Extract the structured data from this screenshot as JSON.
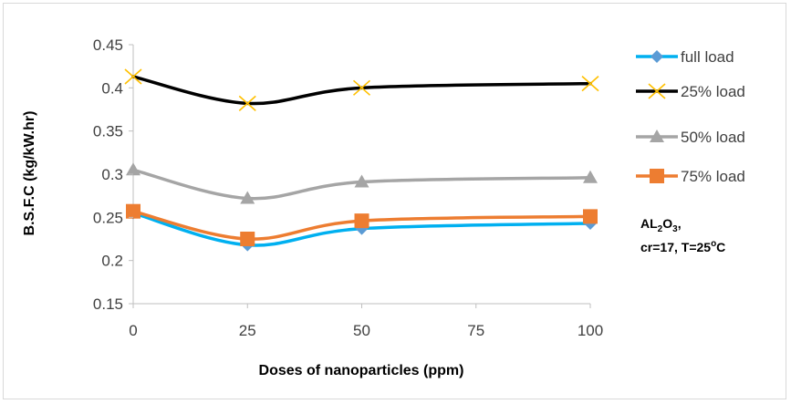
{
  "chart_data": {
    "type": "line",
    "title": "",
    "xlabel": "Doses of nanoparticles (ppm)",
    "ylabel": "B.S.F.C (kg/kW.hr)",
    "x": [
      0,
      25,
      50,
      100
    ],
    "xticks": [
      "0",
      "25",
      "50",
      "75",
      "100"
    ],
    "xlim": [
      0,
      100
    ],
    "yticks": [
      "0.15",
      "0.2",
      "0.25",
      "0.3",
      "0.35",
      "0.4",
      "0.45"
    ],
    "ylim": [
      0.15,
      0.45
    ],
    "grid": false,
    "legend_position": "right",
    "series": [
      {
        "name": "full  load",
        "values": [
          0.255,
          0.218,
          0.237,
          0.243
        ],
        "color": "#00b0f0",
        "marker": "diamond",
        "marker_color": "#5b9bd5"
      },
      {
        "name": "25% load",
        "values": [
          0.413,
          0.382,
          0.4,
          0.405
        ],
        "color": "#000000",
        "marker": "x",
        "marker_color": "#ffc000"
      },
      {
        "name": "50% load",
        "values": [
          0.305,
          0.272,
          0.291,
          0.296
        ],
        "color": "#a5a5a5",
        "marker": "triangle",
        "marker_color": "#a5a5a5"
      },
      {
        "name": "75% load",
        "values": [
          0.257,
          0.225,
          0.246,
          0.251
        ],
        "color": "#ed7d31",
        "marker": "square",
        "marker_color": "#ed7d31"
      }
    ],
    "annotation": {
      "line1_base": "AL",
      "line1_sub1": "2",
      "line1_mid": "O",
      "line1_sub2": "3",
      "line1_tail": ",",
      "line2_base": "cr=17, T=25",
      "line2_sup": "o",
      "line2_tail": "C"
    }
  }
}
